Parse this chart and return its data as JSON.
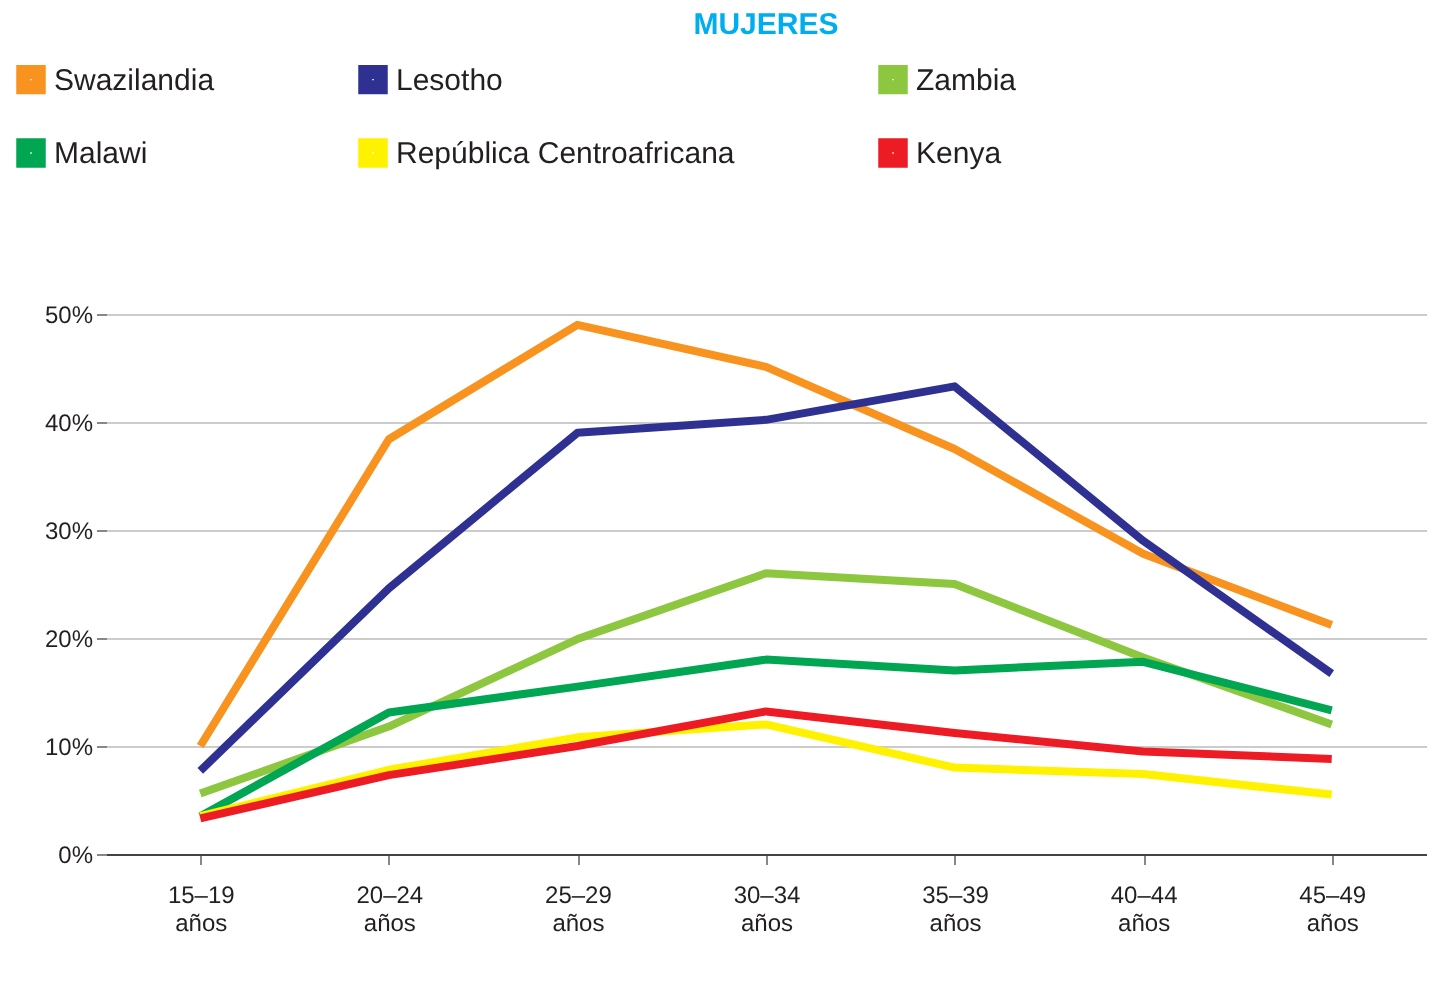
{
  "chart_data": {
    "type": "line",
    "title": "MUJERES",
    "categories": [
      "15–19 años",
      "20–24 años",
      "25–29 años",
      "30–34 años",
      "35–39 años",
      "40–44 años",
      "45–49 años"
    ],
    "series": [
      {
        "name": "Swazilandia",
        "color": "#f7931e",
        "values": [
          10,
          38.4,
          49,
          45.1,
          37.5,
          27.8,
          21.2
        ]
      },
      {
        "name": "Lesotho",
        "color": "#2e3192",
        "values": [
          7.7,
          24.6,
          39,
          40.2,
          43.3,
          29,
          16.7
        ]
      },
      {
        "name": "Zambia",
        "color": "#8dc63f",
        "values": [
          5.6,
          11.8,
          19.9,
          26,
          25,
          18.2,
          12
        ]
      },
      {
        "name": "Malawi",
        "color": "#00a651",
        "values": [
          3.5,
          13.1,
          15.5,
          18,
          17,
          17.8,
          13.3
        ]
      },
      {
        "name": "República Centroafricana",
        "color": "#fff200",
        "values": [
          3.5,
          7.8,
          10.8,
          12,
          8,
          7.4,
          5.5
        ]
      },
      {
        "name": "Kenya",
        "color": "#ed1c24",
        "values": [
          3.3,
          7.3,
          10,
          13.2,
          11.2,
          9.5,
          8.8
        ]
      }
    ],
    "ylim": [
      0,
      50
    ],
    "yticks": [
      {
        "value": 0,
        "label": "0%"
      },
      {
        "value": 10,
        "label": "10%"
      },
      {
        "value": 20,
        "label": "20%"
      },
      {
        "value": 30,
        "label": "30%"
      },
      {
        "value": 40,
        "label": "40%"
      },
      {
        "value": 50,
        "label": "50%"
      }
    ],
    "grid": "y",
    "legend": "top",
    "marker": "none",
    "line_style": "solid"
  }
}
